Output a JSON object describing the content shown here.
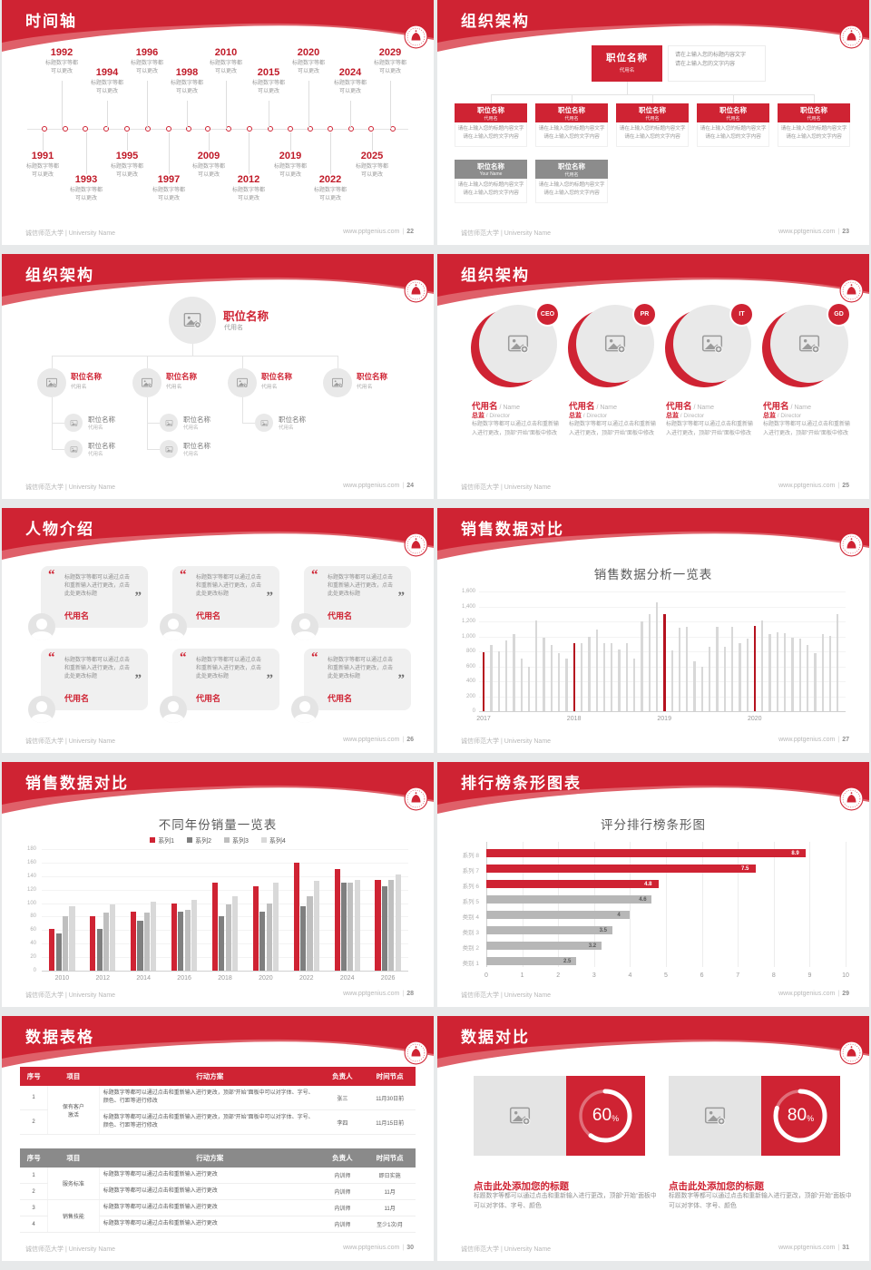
{
  "meta": {
    "footer_left": "诚信师范大学 | University Name",
    "footer_site": "www.pptgenius.com",
    "colors": {
      "red": "#cf2333",
      "red_dark": "#b5121f",
      "red_light": "#df6069",
      "gray_header": "#8a8a8a",
      "bar_gray": "#d8d8d8",
      "text_gray": "#8f8f8f"
    }
  },
  "slides": [
    {
      "type": "timeline",
      "title": "时间轴",
      "page": "22",
      "caption_line1": "标题数字等都",
      "caption_line2": "可以更改",
      "top_years": [
        "1992",
        "1994",
        "1996",
        "1998",
        "2010",
        "2015",
        "2020",
        "2024",
        "2029"
      ],
      "bottom_years": [
        "1991",
        "1993",
        "1995",
        "1997",
        "2009",
        "2012",
        "2019",
        "2022",
        "2025"
      ]
    },
    {
      "type": "orgchart-boxes",
      "title": "组织架构",
      "page": "23",
      "root": {
        "title": "职位名称",
        "sub": "代用名"
      },
      "note_lines": [
        "请在上输入您的标题内容文字",
        "请在上输入您的文字内容"
      ],
      "box_caption": [
        "请在上输入您的标题内容文字",
        "请在上输入您的文字内容"
      ],
      "level1": [
        {
          "title": "职位名称",
          "sub": "代用名"
        },
        {
          "title": "职位名称",
          "sub": "代用名"
        },
        {
          "title": "职位名称",
          "sub": "代用名"
        },
        {
          "title": "职位名称",
          "sub": "代用名"
        },
        {
          "title": "职位名称",
          "sub": "代用名"
        }
      ],
      "level2": [
        {
          "title": "职位名称",
          "sub": "Your Name"
        },
        {
          "title": "职位名称",
          "sub": "代用名"
        }
      ]
    },
    {
      "type": "orgchart-tree",
      "title": "组织架构",
      "page": "24",
      "root": {
        "title": "职位名称",
        "sub": "代用名"
      },
      "branches": [
        {
          "title": "职位名称",
          "sub": "代用名",
          "children": [
            {
              "title": "职位名称",
              "sub": "代用名"
            },
            {
              "title": "职位名称",
              "sub": "代用名"
            }
          ]
        },
        {
          "title": "职位名称",
          "sub": "代用名",
          "children": [
            {
              "title": "职位名称",
              "sub": "代用名"
            },
            {
              "title": "职位名称",
              "sub": "代用名"
            }
          ]
        },
        {
          "title": "职位名称",
          "sub": "代用名",
          "children": [
            {
              "title": "职位名称",
              "sub": "代用名"
            }
          ]
        },
        {
          "title": "职位名称",
          "sub": "代用名",
          "children": []
        }
      ]
    },
    {
      "type": "team-circles",
      "title": "组织架构",
      "page": "25",
      "name_cn": "代用名",
      "name_en": "Name",
      "role_cn": "总监",
      "role_en": "Director",
      "desc": "标题数字等都可以通过点击和重新输入进行更改，顶部“开始”面板中修改",
      "members": [
        {
          "badge": "CEO"
        },
        {
          "badge": "PR"
        },
        {
          "badge": "IT"
        },
        {
          "badge": "GD"
        }
      ]
    },
    {
      "type": "people-quotes",
      "title": "人物介绍",
      "page": "26",
      "quote": "标题数字等都可以通过点击和重新输入进行更改，点击此处更改标题",
      "name": "代用名",
      "count": 6
    },
    {
      "type": "chart-monthly",
      "title": "销售数据对比",
      "page": "27",
      "chart": {
        "type": "bar",
        "title": "销售数据分析一览表",
        "ylim": [
          0,
          1600
        ],
        "ytick_step": 200,
        "groups": [
          "2017",
          "2018",
          "2019",
          "2020"
        ],
        "values": [
          790,
          890,
          800,
          945,
          1030,
          700,
          600,
          1210,
          985,
          890,
          780,
          700,
          905,
          905,
          1000,
          1095,
          910,
          905,
          820,
          910,
          700,
          1205,
          1300,
          1450,
          1300,
          810,
          1120,
          1130,
          670,
          590,
          865,
          1130,
          860,
          1130,
          905,
          975,
          1145,
          1210,
          1030,
          1050,
          1040,
          980,
          970,
          890,
          780,
          1030,
          1010,
          1300
        ],
        "red_indices": [
          0,
          12,
          24,
          36
        ],
        "bar_color": "#d8d8d8",
        "highlight_color": "#b5121f"
      }
    },
    {
      "type": "chart-grouped",
      "title": "销售数据对比",
      "page": "28",
      "chart": {
        "type": "bar",
        "title": "不同年份销量一览表",
        "ylim": [
          0,
          180
        ],
        "ytick_step": 20,
        "legend_position": "top",
        "categories": [
          "2010",
          "2012",
          "2014",
          "2016",
          "2018",
          "2020",
          "2022",
          "2024",
          "2026"
        ],
        "series": [
          {
            "name": "系列1",
            "color": "#cf2333",
            "values": [
              62,
              80,
              88,
              100,
              130,
              125,
              160,
              150,
              135
            ]
          },
          {
            "name": "系列2",
            "color": "#7f7f7f",
            "values": [
              55,
              62,
              74,
              88,
              80,
              88,
              95,
              130,
              125
            ]
          },
          {
            "name": "系列3",
            "color": "#bfbfbf",
            "values": [
              80,
              86,
              86,
              90,
              98,
              100,
              110,
              130,
              135
            ]
          },
          {
            "name": "系列4",
            "color": "#d9d9d9",
            "values": [
              95,
              98,
              102,
              105,
              110,
              130,
              133,
              135,
              143
            ]
          }
        ]
      }
    },
    {
      "type": "chart-hbar",
      "title": "排行榜条形图表",
      "page": "29",
      "chart": {
        "type": "bar-horizontal",
        "title": "评分排行榜条形图",
        "xlim": [
          0,
          10
        ],
        "xtick_step": 1,
        "items": [
          {
            "label": "系列 8",
            "value": 8.9,
            "display": "8.9",
            "color": "#cf2333"
          },
          {
            "label": "系列 7",
            "value": 7.5,
            "display": "7.5",
            "color": "#cf2333"
          },
          {
            "label": "系列 6",
            "value": 4.8,
            "display": "4.8",
            "color": "#cf2333"
          },
          {
            "label": "系列 5",
            "value": 4.6,
            "display": "4.6",
            "color": "#b7b7b7"
          },
          {
            "label": "类别 4",
            "value": 4,
            "display": "4",
            "color": "#b7b7b7"
          },
          {
            "label": "类别 3",
            "value": 3.5,
            "display": "3.5",
            "color": "#b7b7b7"
          },
          {
            "label": "类别 2",
            "value": 3.2,
            "display": "3.2",
            "color": "#b7b7b7"
          },
          {
            "label": "类别 1",
            "value": 2.5,
            "display": "2.5",
            "color": "#b7b7b7"
          }
        ]
      }
    },
    {
      "type": "tables",
      "title": "数据表格",
      "page": "30",
      "headers": [
        "序号",
        "项目",
        "行动方案",
        "负责人",
        "时间节点"
      ],
      "table1": {
        "theme": "red",
        "rows": [
          {
            "no": "1",
            "project": "保有客户\n激活",
            "span": 2,
            "plan": "标题数字等都可以通过点击和重新输入进行更改，顶部“开始”面板中可以对字体、字号、颜色、行距等进行修改",
            "owner": "张三",
            "time": "11月30日前"
          },
          {
            "no": "2",
            "plan": "标题数字等都可以通过点击和重新输入进行更改，顶部“开始”面板中可以对字体、字号、颜色、行距等进行修改",
            "owner": "李四",
            "time": "11月15日前"
          }
        ]
      },
      "table2": {
        "theme": "gray",
        "rows": [
          {
            "no": "1",
            "project": "服务标准",
            "span": 2,
            "plan": "标题数字等都可以通过点击和重新输入进行更改",
            "owner": "内训师",
            "time": "即日实施"
          },
          {
            "no": "2",
            "plan": "标题数字等都可以通过点击和重新输入进行更改",
            "owner": "内训师",
            "time": "11月"
          },
          {
            "no": "3",
            "project": "销售技能",
            "span": 2,
            "plan": "标题数字等都可以通过点击和重新输入进行更改",
            "owner": "内训师",
            "time": "11月"
          },
          {
            "no": "4",
            "plan": "标题数字等都可以通过点击和重新输入进行更改",
            "owner": "内训师",
            "time": "至少1次/月"
          }
        ]
      }
    },
    {
      "type": "percent-cards",
      "title": "数据对比",
      "page": "31",
      "cards": [
        {
          "percent": 60,
          "title": "点击此处添加您的标题",
          "desc": "标题数字等都可以通过点击和重新输入进行更改，顶部“开始”面板中可以对字体、字号、颜色"
        },
        {
          "percent": 80,
          "title": "点击此处添加您的标题",
          "desc": "标题数字等都可以通过点击和重新输入进行更改，顶部“开始”面板中可以对字体、字号、颜色"
        }
      ]
    }
  ]
}
